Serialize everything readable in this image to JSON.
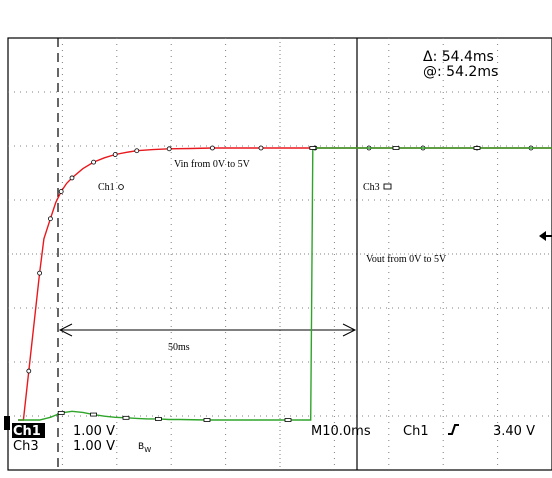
{
  "chart_data": {
    "type": "line",
    "x_unit": "ms",
    "y_unit": "V",
    "x_divisions": 10,
    "y_divisions": 8,
    "time_per_div_ms": 10,
    "volts_per_div": 1,
    "grid": true,
    "series": [
      {
        "name": "Ch1",
        "color": "#e8191e",
        "marker": "circle",
        "x": [
          0,
          1,
          2,
          3,
          4,
          4.8,
          6,
          7,
          8,
          9,
          10,
          12,
          14,
          16,
          18,
          20,
          22,
          25,
          28,
          32,
          36,
          40,
          45,
          50,
          55,
          60,
          65,
          70,
          75,
          80,
          85,
          90,
          95,
          100
        ],
        "y": [
          0,
          0,
          0.9,
          1.8,
          2.7,
          3.33,
          3.7,
          4.0,
          4.2,
          4.35,
          4.45,
          4.62,
          4.74,
          4.82,
          4.88,
          4.92,
          4.95,
          4.97,
          4.985,
          4.99,
          5.0,
          5.0,
          5.0,
          5.0,
          5.0,
          5.0,
          5.0,
          5.0,
          5.0,
          5.0,
          5.0,
          5.0,
          5.0,
          5.0
        ]
      },
      {
        "name": "Ch3",
        "color": "#2ea52a",
        "marker": "square",
        "x": [
          0,
          4,
          6,
          8,
          10,
          12,
          14,
          16,
          18,
          20,
          22,
          24,
          26,
          28,
          30,
          35,
          40,
          45,
          50,
          54.2,
          54.4,
          54.6,
          60,
          65,
          70,
          75,
          80,
          85,
          90,
          95,
          100
        ],
        "y": [
          0,
          0,
          0.05,
          0.13,
          0.16,
          0.14,
          0.1,
          0.07,
          0.05,
          0.04,
          0.03,
          0.02,
          0.02,
          0.01,
          0.01,
          0,
          0,
          0,
          0,
          0,
          2.5,
          5.0,
          5.0,
          5.0,
          5.0,
          5.0,
          5.0,
          5.0,
          5.0,
          5.0,
          5.0
        ]
      }
    ],
    "annotations": [
      {
        "text": "Vin from 0V to 5V",
        "x": 30,
        "y": 4.7
      },
      {
        "text": "Vout from 0V to 5V",
        "x": 65,
        "y": 3.2
      },
      {
        "text": "50ms",
        "x": 32,
        "y": 1.4
      }
    ]
  },
  "ann": {
    "vin": "Vin from 0V to 5V",
    "vout": "Vout from 0V to 5V",
    "span": "50ms",
    "ch1_tag": "Ch1",
    "ch3_tag": "Ch3"
  },
  "readout": {
    "delta": "Δ: 54.4ms",
    "at": "@: 54.2ms"
  },
  "status": {
    "ch1_label": "Ch1",
    "ch1_scale": "1.00 V",
    "ch3_label": "Ch3",
    "ch3_scale": "1.00 V",
    "bw": "B",
    "bw_sub": "W",
    "timebase": "M10.0ms",
    "trig_source": "Ch1",
    "trig_level": "3.40 V"
  },
  "colors": {
    "ch1": "#e8191e",
    "ch3": "#2ea52a",
    "grid": "#808080",
    "cursor": "#000000"
  }
}
